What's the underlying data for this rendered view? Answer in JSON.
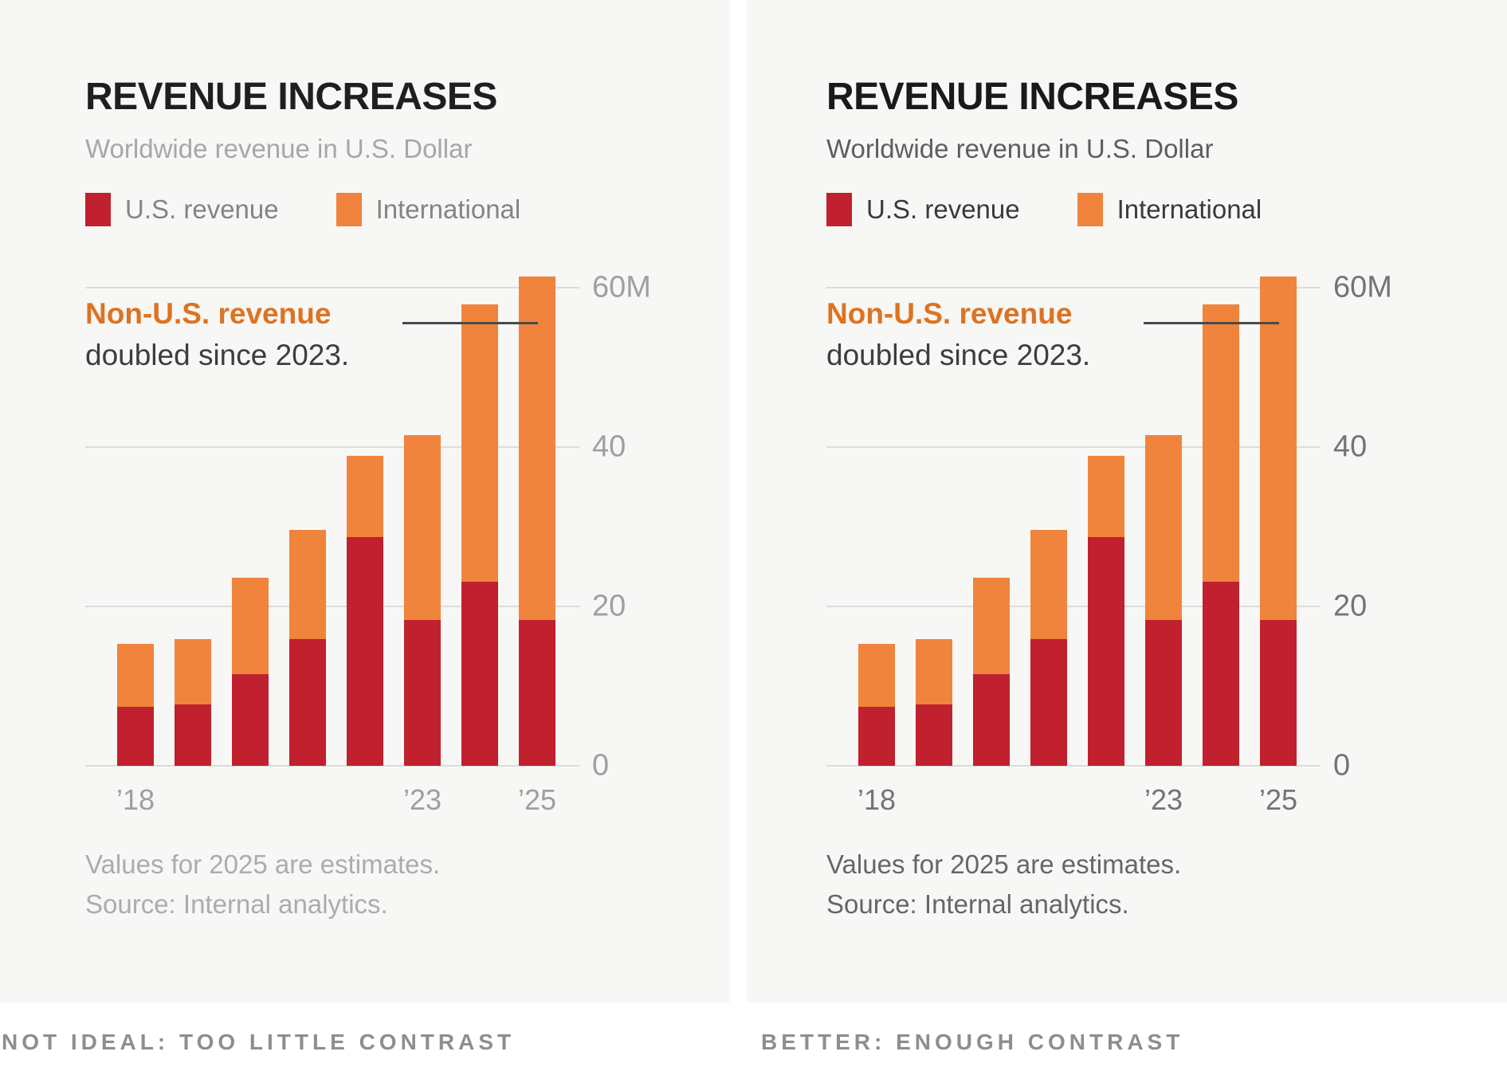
{
  "style": {
    "page_bg": "#ffffff",
    "panel_bg": "#f7f7f5",
    "grid_color": "#dcdcdc",
    "pointer_color": "#4a4a4a",
    "caption_color": "#8e8e8e",
    "annotation_highlight_color": "#dd7321",
    "annotation_text_color": "#3d3d3d"
  },
  "chart_data": {
    "type": "bar",
    "stacked": true,
    "title": "REVENUE INCREASES",
    "subtitle": "Worldwide revenue in U.S. Dollar",
    "categories": [
      "2018",
      "2019",
      "2020",
      "2021",
      "2022",
      "2023",
      "2024",
      "2025"
    ],
    "x_tick_labels": [
      "’18",
      "",
      "",
      "",
      "",
      "’23",
      "",
      "’25"
    ],
    "series": [
      {
        "name": "U.S. revenue",
        "color": "#c1202e",
        "values": [
          7.4,
          7.7,
          11.5,
          15.9,
          28.7,
          18.3,
          23.1,
          18.3
        ]
      },
      {
        "name": "International",
        "color": "#f0843c",
        "values": [
          7.9,
          8.2,
          12.1,
          13.7,
          10.2,
          23.2,
          34.8,
          43.1
        ]
      }
    ],
    "totals": [
      15.3,
      15.9,
      23.6,
      29.6,
      38.9,
      41.5,
      57.9,
      61.4
    ],
    "ylim": [
      0,
      63
    ],
    "yticks": [
      {
        "value": 0,
        "label": "0"
      },
      {
        "value": 20,
        "label": "20"
      },
      {
        "value": 40,
        "label": "40"
      },
      {
        "value": 60,
        "label": "60M"
      }
    ],
    "grid": "horizontal",
    "legend_position": "top",
    "annotation": {
      "highlight": "Non-U.S. revenue",
      "rest": "doubled since 2023.",
      "pointer_value": 55.7,
      "points_to": "2025"
    }
  },
  "panels": [
    {
      "id": "low-contrast",
      "title": "REVENUE INCREASES",
      "subtitle": "Worldwide revenue in U.S. Dollar",
      "footnote_lines": [
        "Values for 2025 are estimates.",
        "Source: Internal analytics."
      ],
      "caption": "NOT IDEAL: TOO LITTLE CONTRAST",
      "colors": {
        "title": "#1f1f1f",
        "subtitle": "#a7a7a7",
        "legend": "#848484",
        "axis": "#9f9f9f",
        "footnote": "#acacac"
      }
    },
    {
      "id": "enough-contrast",
      "title": "REVENUE INCREASES",
      "subtitle": "Worldwide revenue in U.S. Dollar",
      "footnote_lines": [
        "Values for 2025 are estimates.",
        "Source: Internal analytics."
      ],
      "caption": "BETTER: ENOUGH CONTRAST",
      "colors": {
        "title": "#1a1a1a",
        "subtitle": "#5e5e5e",
        "legend": "#3a3a3a",
        "axis": "#747474",
        "footnote": "#666666"
      }
    }
  ]
}
